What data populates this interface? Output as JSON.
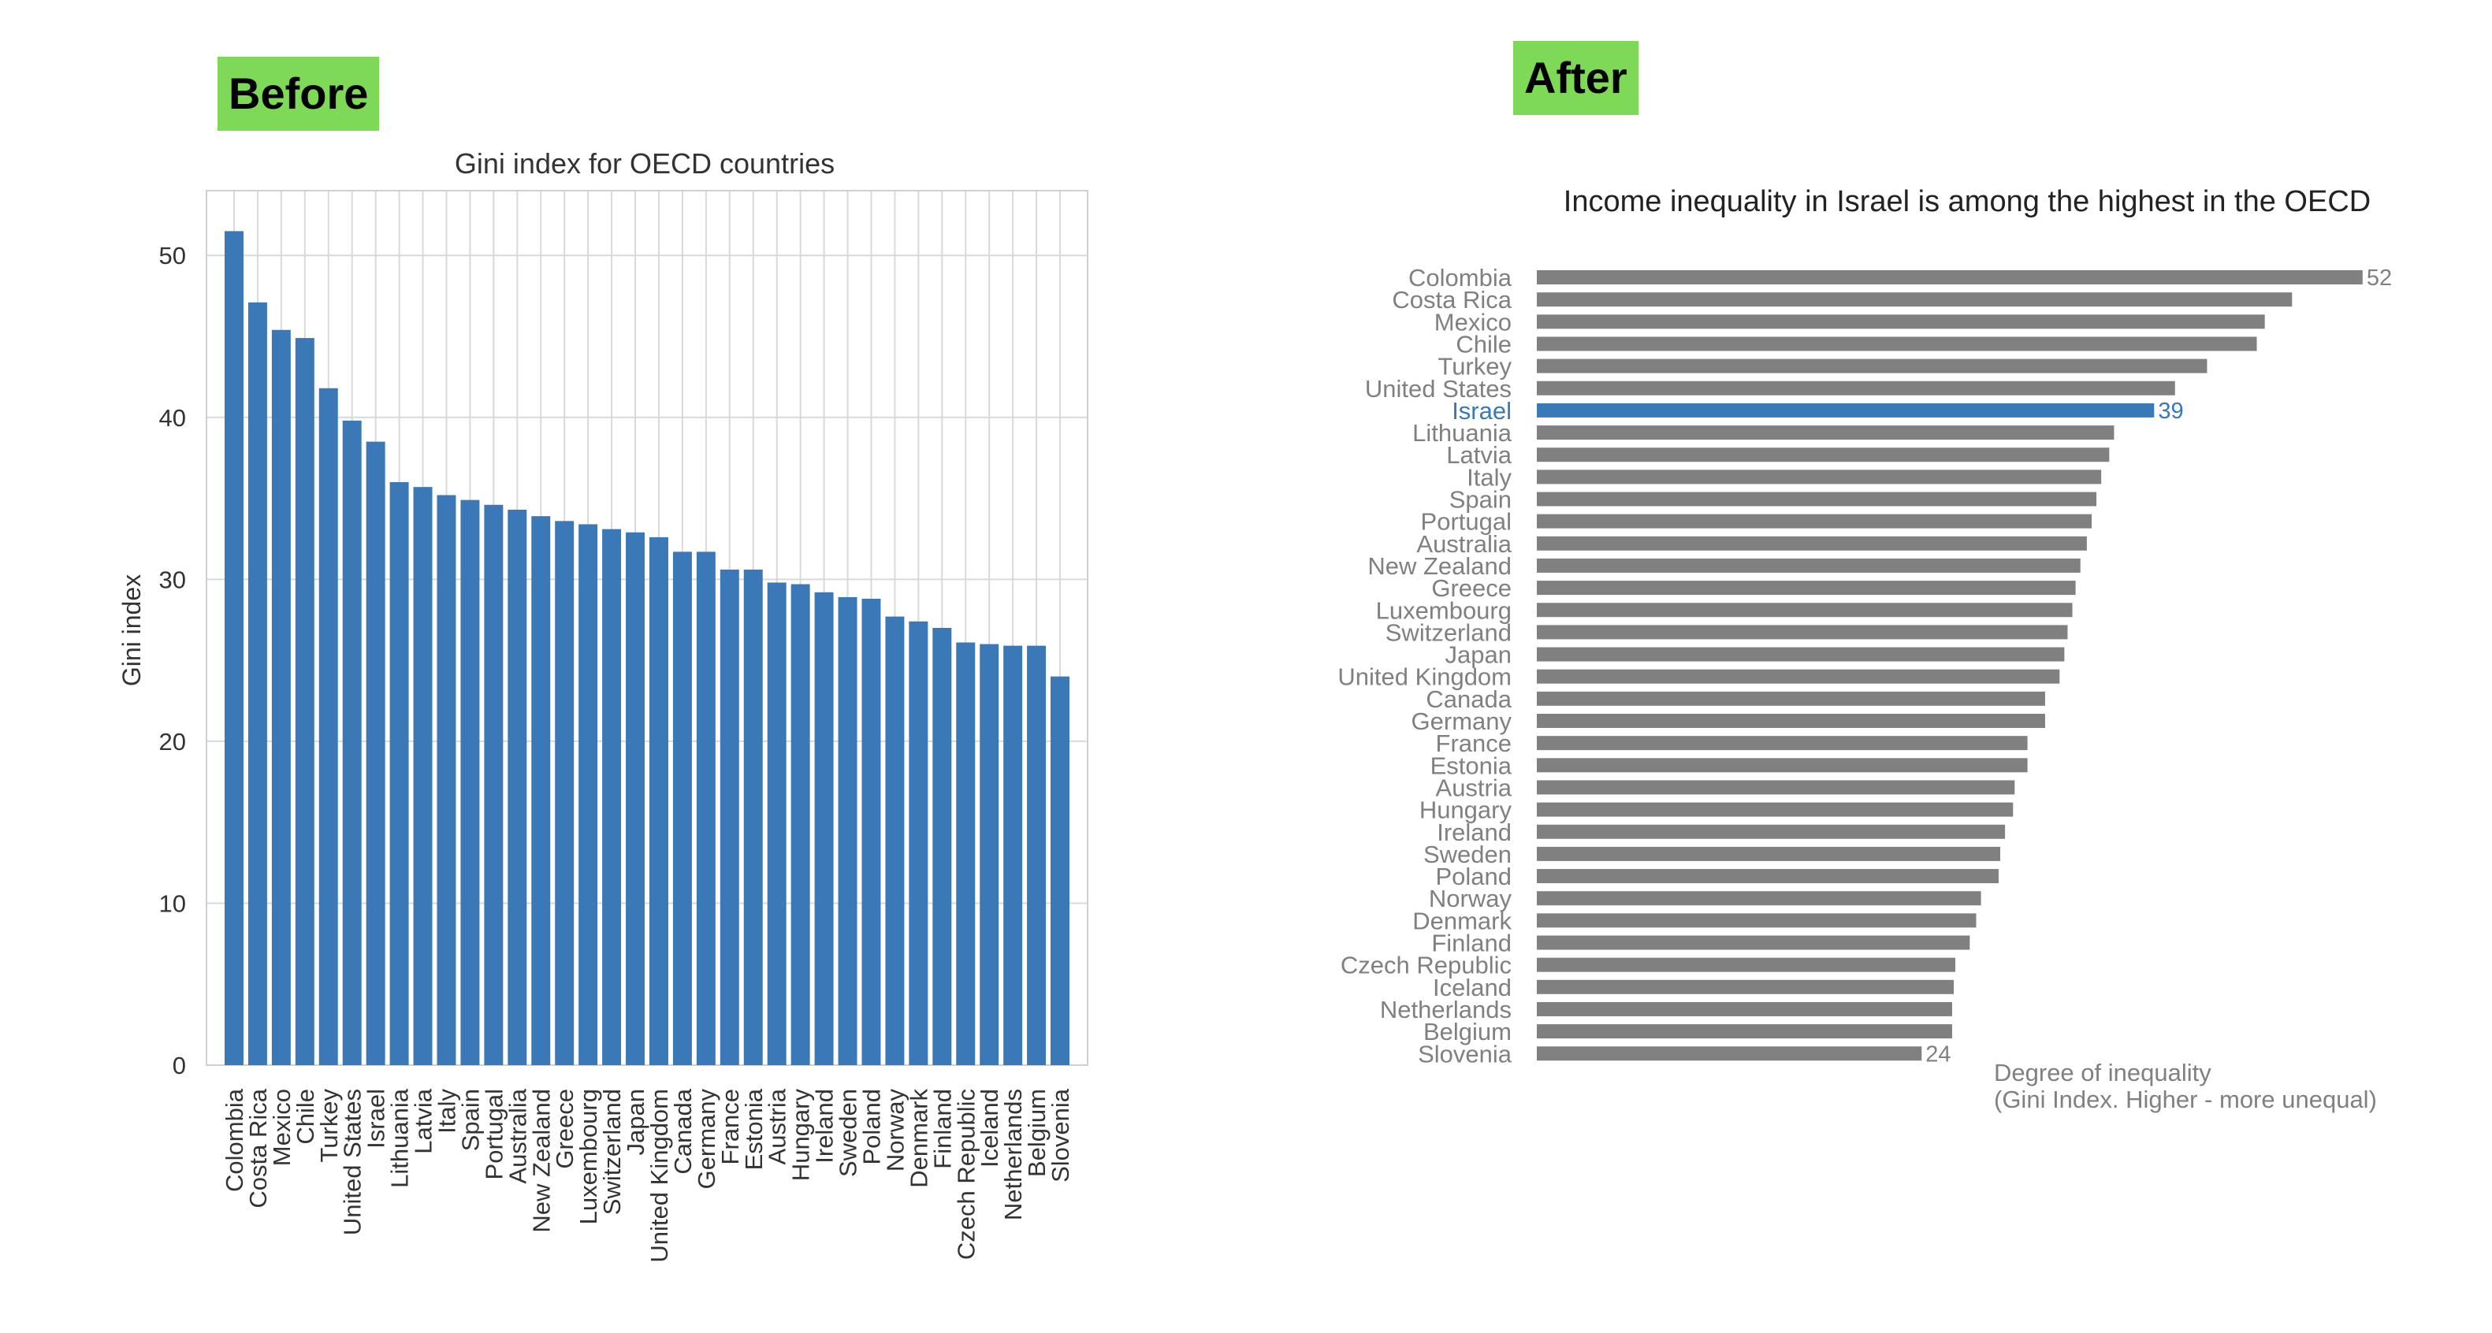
{
  "labels": {
    "before": "Before",
    "after": "After"
  },
  "colors": {
    "bar_blue": "#3a78b7",
    "bar_grey": "#808080",
    "highlight": "#3a78b7",
    "badge_green": "#7ed957"
  },
  "chart_data": [
    {
      "type": "bar",
      "orientation": "vertical",
      "title": "Gini index for OECD countries",
      "xlabel": "",
      "ylabel": "Gini index",
      "ylim": [
        0,
        54
      ],
      "yticks": [
        0,
        10,
        20,
        30,
        40,
        50
      ],
      "grid": true,
      "categories": [
        "Colombia",
        "Costa Rica",
        "Mexico",
        "Chile",
        "Turkey",
        "United States",
        "Israel",
        "Lithuania",
        "Latvia",
        "Italy",
        "Spain",
        "Portugal",
        "Australia",
        "New Zealand",
        "Greece",
        "Luxembourg",
        "Switzerland",
        "Japan",
        "United Kingdom",
        "Canada",
        "Germany",
        "France",
        "Estonia",
        "Austria",
        "Hungary",
        "Ireland",
        "Sweden",
        "Poland",
        "Norway",
        "Denmark",
        "Finland",
        "Czech Republic",
        "Iceland",
        "Netherlands",
        "Belgium",
        "Slovenia"
      ],
      "values": [
        51.5,
        47.1,
        45.4,
        44.9,
        41.8,
        39.8,
        38.5,
        36.0,
        35.7,
        35.2,
        34.9,
        34.6,
        34.3,
        33.9,
        33.6,
        33.4,
        33.1,
        32.9,
        32.6,
        31.7,
        31.7,
        30.6,
        30.6,
        29.8,
        29.7,
        29.2,
        28.9,
        28.8,
        27.7,
        27.4,
        27.0,
        26.1,
        26.0,
        25.9,
        25.9,
        24.0
      ]
    },
    {
      "type": "bar",
      "orientation": "horizontal",
      "title": "Income inequality in Israel is among the highest in the OECD",
      "xlabel_line1": "Degree of inequality",
      "xlabel_line2": "(Gini Index. Higher - more unequal)",
      "xlim": [
        0,
        52
      ],
      "highlight": "Israel",
      "value_labels": {
        "Colombia": "52",
        "Israel": "39",
        "Slovenia": "24"
      },
      "categories": [
        "Colombia",
        "Costa Rica",
        "Mexico",
        "Chile",
        "Turkey",
        "United States",
        "Israel",
        "Lithuania",
        "Latvia",
        "Italy",
        "Spain",
        "Portugal",
        "Australia",
        "New Zealand",
        "Greece",
        "Luxembourg",
        "Switzerland",
        "Japan",
        "United Kingdom",
        "Canada",
        "Germany",
        "France",
        "Estonia",
        "Austria",
        "Hungary",
        "Ireland",
        "Sweden",
        "Poland",
        "Norway",
        "Denmark",
        "Finland",
        "Czech Republic",
        "Iceland",
        "Netherlands",
        "Belgium",
        "Slovenia"
      ],
      "values": [
        51.5,
        47.1,
        45.4,
        44.9,
        41.8,
        39.8,
        38.5,
        36.0,
        35.7,
        35.2,
        34.9,
        34.6,
        34.3,
        33.9,
        33.6,
        33.4,
        33.1,
        32.9,
        32.6,
        31.7,
        31.7,
        30.6,
        30.6,
        29.8,
        29.7,
        29.2,
        28.9,
        28.8,
        27.7,
        27.4,
        27.0,
        26.1,
        26.0,
        25.9,
        25.9,
        24.0
      ]
    }
  ]
}
